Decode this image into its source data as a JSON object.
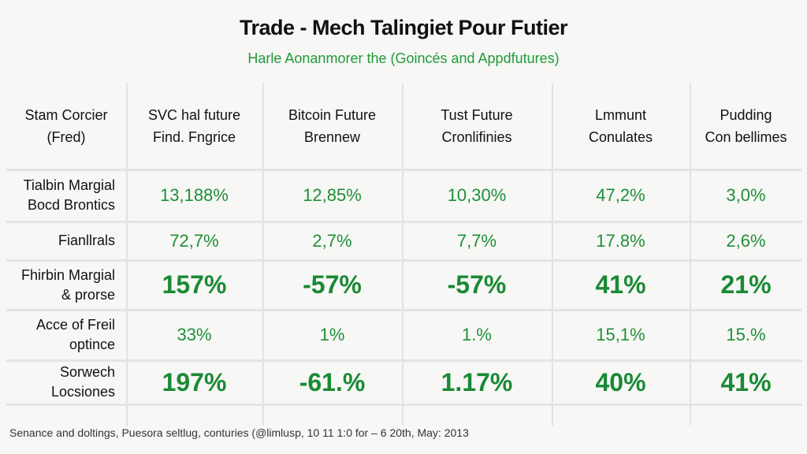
{
  "title": "Trade - Mech Talingiet Pour Futier",
  "subtitle": "Harle Aonanmorer the (Goincés and Appdfutures)",
  "columns": [
    {
      "line1": "Stam Corcier",
      "line2": "(Fred)"
    },
    {
      "line1": "SVC hal future",
      "line2": "Find. Fngrice"
    },
    {
      "line1": "Bitcoin Future",
      "line2": "Brennew"
    },
    {
      "line1": "Tust Future",
      "line2": "Cronlifinies"
    },
    {
      "line1": "Lmmunt",
      "line2": "Conulates"
    },
    {
      "line1": "Pudding",
      "line2": "Con bellimes"
    }
  ],
  "rows": [
    {
      "line1": "Tialbin Margial",
      "line2": "Bocd Brontics",
      "values": [
        "13,188%",
        "12,85%",
        "10,30%",
        "47,2%",
        "3,0%"
      ],
      "emphasis": false
    },
    {
      "line1": "Fianllrals",
      "line2": "",
      "values": [
        "72,7%",
        "2,7%",
        "7,7%",
        "17.8%",
        "2,6%"
      ],
      "emphasis": false
    },
    {
      "line1": "Fhirbin Margial",
      "line2": "& prorse",
      "values": [
        "157%",
        "-57%",
        "-57%",
        "41%",
        "21%"
      ],
      "emphasis": true
    },
    {
      "line1": "Acce of Freil",
      "line2": "optince",
      "values": [
        "33%",
        "1%",
        "1.%",
        "15,1%",
        "15.%"
      ],
      "emphasis": false
    },
    {
      "line1": "Sorwech",
      "line2": "Locsiones",
      "values": [
        "197%",
        "-61.%",
        "1.17%",
        "40%",
        "41%"
      ],
      "emphasis": true
    }
  ],
  "footer": "Senance and doltings, Puesora seltlug, conturies (@limlusp, 10 11 1:0 for – 6 20th, May: 2013",
  "colors": {
    "accent": "#1f8f38"
  }
}
